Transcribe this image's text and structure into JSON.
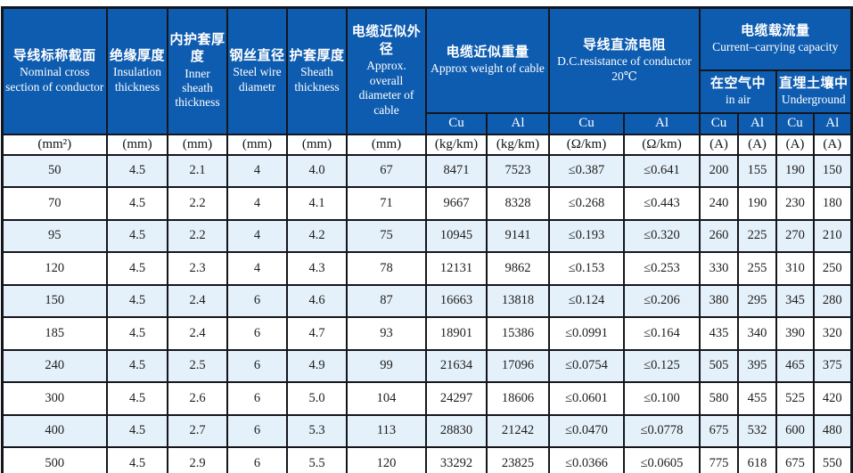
{
  "colors": {
    "header_blue": "#0e5cb0",
    "stripe_blue": "#e5f1fa",
    "row_white": "#ffffff",
    "grid_dark": "#14161c",
    "header_text": "#ffffff",
    "body_text": "#1d1d1d"
  },
  "header": {
    "cols": [
      {
        "zh": "导线标称截面",
        "en": "Nominal cross section of conductor"
      },
      {
        "zh": "绝缘厚度",
        "en": "Insulation thickness"
      },
      {
        "zh": "内护套厚度",
        "en": "Inner sheath thickness"
      },
      {
        "zh": "钢丝直径",
        "en": "Steel wire diametr"
      },
      {
        "zh": "护套厚度",
        "en": "Sheath thickness"
      },
      {
        "zh": "电缆近似外径",
        "en": "Approx. overall diameter of cable"
      },
      {
        "zh": "电缆近似重量",
        "en": "Approx weight of cable"
      },
      {
        "zh": "导线直流电阻",
        "en": "D.C.resistance of conductor 20℃"
      },
      {
        "zh": "电缆载流量",
        "en": "Current–carrying capacity"
      }
    ],
    "sub": {
      "in_air": {
        "zh": "在空气中",
        "en": "in air"
      },
      "underground": {
        "zh": "直埋土壤中",
        "en": "Underground"
      },
      "cu": "Cu",
      "al": "Al"
    }
  },
  "units": [
    "(mm²)",
    "(mm)",
    "(mm)",
    "(mm)",
    "(mm)",
    "(mm)",
    "(kg/km)",
    "(kg/km)",
    "(Ω/km)",
    "(Ω/km)",
    "(A)",
    "(A)",
    "(A)",
    "(A)"
  ],
  "rows": [
    [
      "50",
      "4.5",
      "2.1",
      "4",
      "4.0",
      "67",
      "8471",
      "7523",
      "≤0.387",
      "≤0.641",
      "200",
      "155",
      "190",
      "150"
    ],
    [
      "70",
      "4.5",
      "2.2",
      "4",
      "4.1",
      "71",
      "9667",
      "8328",
      "≤0.268",
      "≤0.443",
      "240",
      "190",
      "230",
      "180"
    ],
    [
      "95",
      "4.5",
      "2.2",
      "4",
      "4.2",
      "75",
      "10945",
      "9141",
      "≤0.193",
      "≤0.320",
      "260",
      "225",
      "270",
      "210"
    ],
    [
      "120",
      "4.5",
      "2.3",
      "4",
      "4.3",
      "78",
      "12131",
      "9862",
      "≤0.153",
      "≤0.253",
      "330",
      "255",
      "310",
      "250"
    ],
    [
      "150",
      "4.5",
      "2.4",
      "6",
      "4.6",
      "87",
      "16663",
      "13818",
      "≤0.124",
      "≤0.206",
      "380",
      "295",
      "345",
      "280"
    ],
    [
      "185",
      "4.5",
      "2.4",
      "6",
      "4.7",
      "93",
      "18901",
      "15386",
      "≤0.0991",
      "≤0.164",
      "435",
      "340",
      "390",
      "320"
    ],
    [
      "240",
      "4.5",
      "2.5",
      "6",
      "4.9",
      "99",
      "21634",
      "17096",
      "≤0.0754",
      "≤0.125",
      "505",
      "395",
      "465",
      "375"
    ],
    [
      "300",
      "4.5",
      "2.6",
      "6",
      "5.0",
      "104",
      "24297",
      "18606",
      "≤0.0601",
      "≤0.100",
      "580",
      "455",
      "525",
      "420"
    ],
    [
      "400",
      "4.5",
      "2.7",
      "6",
      "5.3",
      "113",
      "28830",
      "21242",
      "≤0.0470",
      "≤0.0778",
      "675",
      "532",
      "600",
      "480"
    ],
    [
      "500",
      "4.5",
      "2.9",
      "6",
      "5.5",
      "120",
      "33292",
      "23825",
      "≤0.0366",
      "≤0.0605",
      "775",
      "618",
      "675",
      "550"
    ]
  ]
}
